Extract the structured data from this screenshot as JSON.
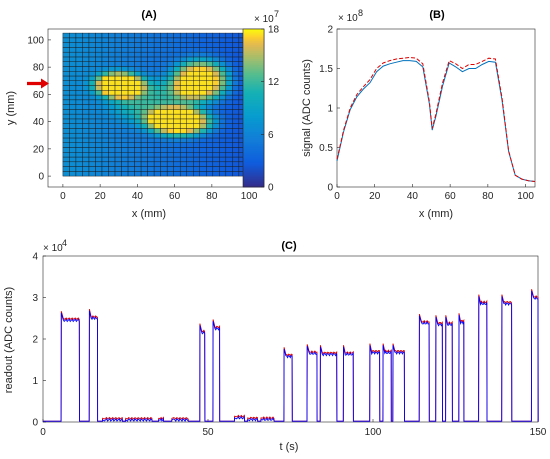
{
  "chart_data": [
    {
      "type": "heatmap",
      "title": "(A)",
      "xlabel": "x (mm)",
      "ylabel": "y (mm)",
      "xlim": [
        -8,
        108
      ],
      "ylim": [
        -8,
        108
      ],
      "xticks": [
        "0",
        "20",
        "40",
        "60",
        "80",
        "100"
      ],
      "yticks": [
        "0",
        "20",
        "40",
        "60",
        "80",
        "100"
      ],
      "grid_extent": {
        "x": [
          0,
          105
        ],
        "y": [
          0,
          105
        ],
        "cols": 30,
        "rows": 30
      },
      "colorbar": {
        "min": 0,
        "max": 18,
        "ticks": [
          "0",
          "6",
          "12",
          "18"
        ],
        "multiplier": "× 10",
        "multiplier_exp": "7",
        "colormap": "parula"
      },
      "blobs": [
        {
          "x": 30,
          "y": 67,
          "sx": 11,
          "sy": 8,
          "amp": 16
        },
        {
          "x": 74,
          "y": 70,
          "sx": 13,
          "sy": 13,
          "amp": 15.5
        },
        {
          "x": 63,
          "y": 40,
          "sx": 15,
          "sy": 9,
          "amp": 16
        },
        {
          "x": 48,
          "y": 55,
          "sx": 18,
          "sy": 14,
          "amp": 7
        }
      ],
      "background_gradient": {
        "left": 7,
        "right": 2
      },
      "marker": {
        "shape": "arrow",
        "color": "#e00000",
        "y": 68
      }
    },
    {
      "type": "line",
      "title": "(B)",
      "xlabel": "x (mm)",
      "ylabel": "signal (ADC counts)",
      "multiplier": "× 10",
      "multiplier_exp": "8",
      "xlim": [
        0,
        105
      ],
      "ylim": [
        0,
        2
      ],
      "xticks": [
        "0",
        "20",
        "40",
        "60",
        "80",
        "100"
      ],
      "yticks": [
        "0",
        "0.5",
        "1",
        "1.5",
        "2"
      ],
      "x": [
        0,
        3.5,
        7,
        10.5,
        14,
        17.5,
        21,
        24.5,
        28,
        31.5,
        35,
        38.5,
        42,
        45.5,
        49,
        50.5,
        52.5,
        56,
        59.5,
        63,
        66.5,
        70,
        73.5,
        77,
        80.5,
        84,
        87.5,
        91,
        94.5,
        98,
        101.5,
        105
      ],
      "series": [
        {
          "values": [
            0.33,
            0.7,
            0.98,
            1.14,
            1.24,
            1.32,
            1.46,
            1.53,
            1.56,
            1.58,
            1.6,
            1.6,
            1.59,
            1.52,
            1.05,
            0.72,
            0.9,
            1.28,
            1.57,
            1.52,
            1.46,
            1.5,
            1.5,
            1.55,
            1.59,
            1.58,
            1.1,
            0.45,
            0.15,
            0.1,
            0.08,
            0.07
          ],
          "color": "#0072bd",
          "style": "solid"
        },
        {
          "values": [
            0.35,
            0.72,
            1.0,
            1.17,
            1.27,
            1.36,
            1.5,
            1.57,
            1.6,
            1.62,
            1.63,
            1.64,
            1.63,
            1.56,
            1.08,
            0.74,
            0.93,
            1.32,
            1.6,
            1.56,
            1.5,
            1.55,
            1.55,
            1.59,
            1.63,
            1.62,
            1.13,
            0.46,
            0.15,
            0.1,
            0.08,
            0.07
          ],
          "color": "#e00000",
          "style": "dashed"
        }
      ]
    },
    {
      "type": "line",
      "title": "(C)",
      "xlabel": "t (s)",
      "ylabel": "readout (ADC counts)",
      "multiplier": "× 10",
      "multiplier_exp": "4",
      "xlim": [
        0,
        150
      ],
      "ylim": [
        0,
        4
      ],
      "xticks": [
        "0",
        "50",
        "100",
        "150"
      ],
      "yticks": [
        "0",
        "1",
        "2",
        "3",
        "4"
      ],
      "baseline": 0.02,
      "plateaus": [
        {
          "t0": 5.5,
          "t1": 11,
          "level": 2.45
        },
        {
          "t0": 14,
          "t1": 16.5,
          "level": 2.5
        },
        {
          "t0": 18,
          "t1": 24,
          "level": 0.05
        },
        {
          "t0": 25,
          "t1": 33,
          "level": 0.05
        },
        {
          "t0": 35,
          "t1": 36.5,
          "level": 0.05
        },
        {
          "t0": 39,
          "t1": 44,
          "level": 0.05
        },
        {
          "t0": 47.5,
          "t1": 49,
          "level": 2.15
        },
        {
          "t0": 51.5,
          "t1": 53.5,
          "level": 2.25
        },
        {
          "t0": 58,
          "t1": 61,
          "level": 0.1
        },
        {
          "t0": 62,
          "t1": 65,
          "level": 0.06
        },
        {
          "t0": 66,
          "t1": 70,
          "level": 0.06
        },
        {
          "t0": 73,
          "t1": 75.5,
          "level": 1.58
        },
        {
          "t0": 80,
          "t1": 83,
          "level": 1.65
        },
        {
          "t0": 84,
          "t1": 89,
          "level": 1.63
        },
        {
          "t0": 91,
          "t1": 94,
          "level": 1.63
        },
        {
          "t0": 99,
          "t1": 102,
          "level": 1.67
        },
        {
          "t0": 103,
          "t1": 105.5,
          "level": 1.67
        },
        {
          "t0": 106,
          "t1": 109.5,
          "level": 1.67
        },
        {
          "t0": 114,
          "t1": 117,
          "level": 2.38
        },
        {
          "t0": 119,
          "t1": 121,
          "level": 2.35
        },
        {
          "t0": 122,
          "t1": 124,
          "level": 2.35
        },
        {
          "t0": 126,
          "t1": 127.5,
          "level": 2.4
        },
        {
          "t0": 132,
          "t1": 134.5,
          "level": 2.85
        },
        {
          "t0": 139,
          "t1": 142,
          "level": 2.85
        },
        {
          "t0": 148,
          "t1": 150,
          "level": 2.98
        }
      ],
      "series": [
        {
          "color": "#0000ff"
        },
        {
          "color": "#e00000"
        }
      ]
    }
  ]
}
